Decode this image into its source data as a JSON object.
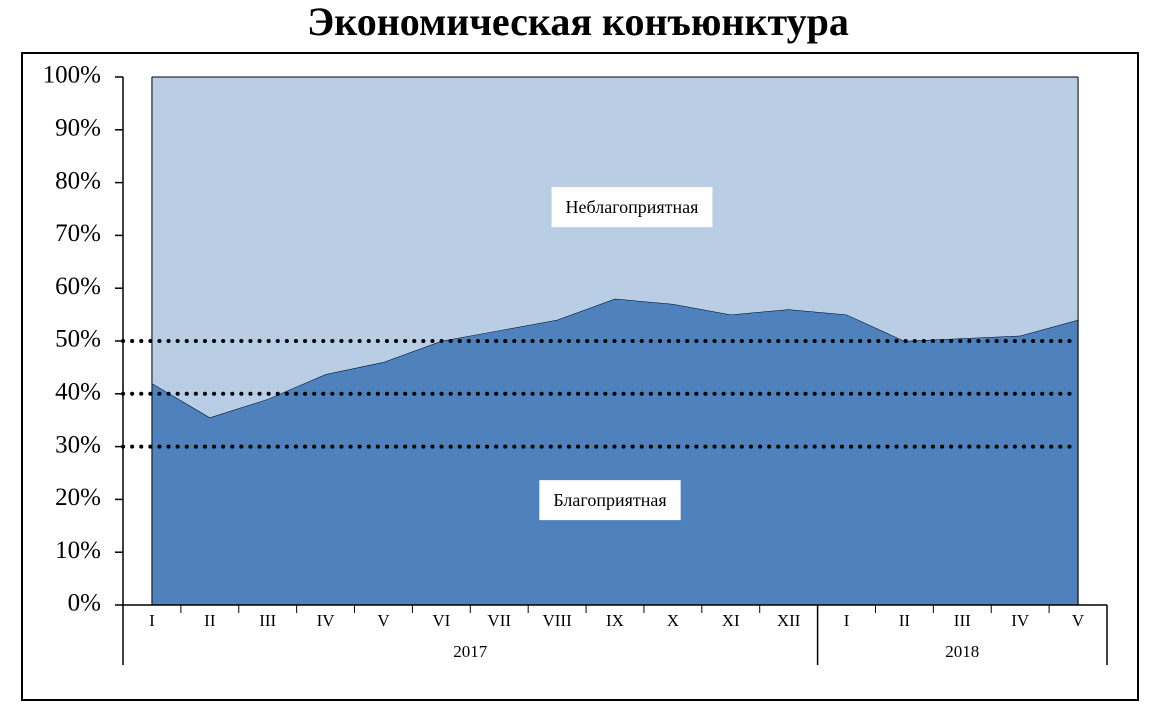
{
  "chart_data": {
    "type": "stacked_area",
    "title": "Экономическая конъюнктура",
    "categories": [
      "I",
      "II",
      "III",
      "IV",
      "V",
      "VI",
      "VII",
      "VIII",
      "IX",
      "X",
      "XI",
      "XII",
      "I",
      "II",
      "III",
      "IV",
      "V"
    ],
    "groups": [
      {
        "label": "2017",
        "count": 12
      },
      {
        "label": "2018",
        "count": 5
      }
    ],
    "series": [
      {
        "name": "Благоприятная",
        "color": "#4f81bd",
        "values": [
          42,
          35.5,
          39,
          43.7,
          46,
          50,
          52,
          54,
          58,
          57,
          55,
          56,
          55,
          50,
          50.5,
          51,
          54
        ]
      },
      {
        "name": "Неблагоприятная",
        "color": "#b9cde5",
        "values": [
          58,
          64.5,
          61,
          56.3,
          54,
          50,
          48,
          46,
          42,
          43,
          45,
          44,
          45,
          50,
          49.5,
          49,
          46
        ]
      }
    ],
    "reference_lines": [
      30,
      40,
      50
    ],
    "ylim": [
      0,
      100
    ],
    "yticks": [
      {
        "value": 0,
        "label": "0%"
      },
      {
        "value": 10,
        "label": "10%"
      },
      {
        "value": 20,
        "label": "20%"
      },
      {
        "value": 30,
        "label": "30%"
      },
      {
        "value": 40,
        "label": "40%"
      },
      {
        "value": 50,
        "label": "50%"
      },
      {
        "value": 60,
        "label": "60%"
      },
      {
        "value": 70,
        "label": "70%"
      },
      {
        "value": 80,
        "label": "80%"
      },
      {
        "value": 90,
        "label": "90%"
      },
      {
        "value": 100,
        "label": "100%"
      }
    ]
  }
}
